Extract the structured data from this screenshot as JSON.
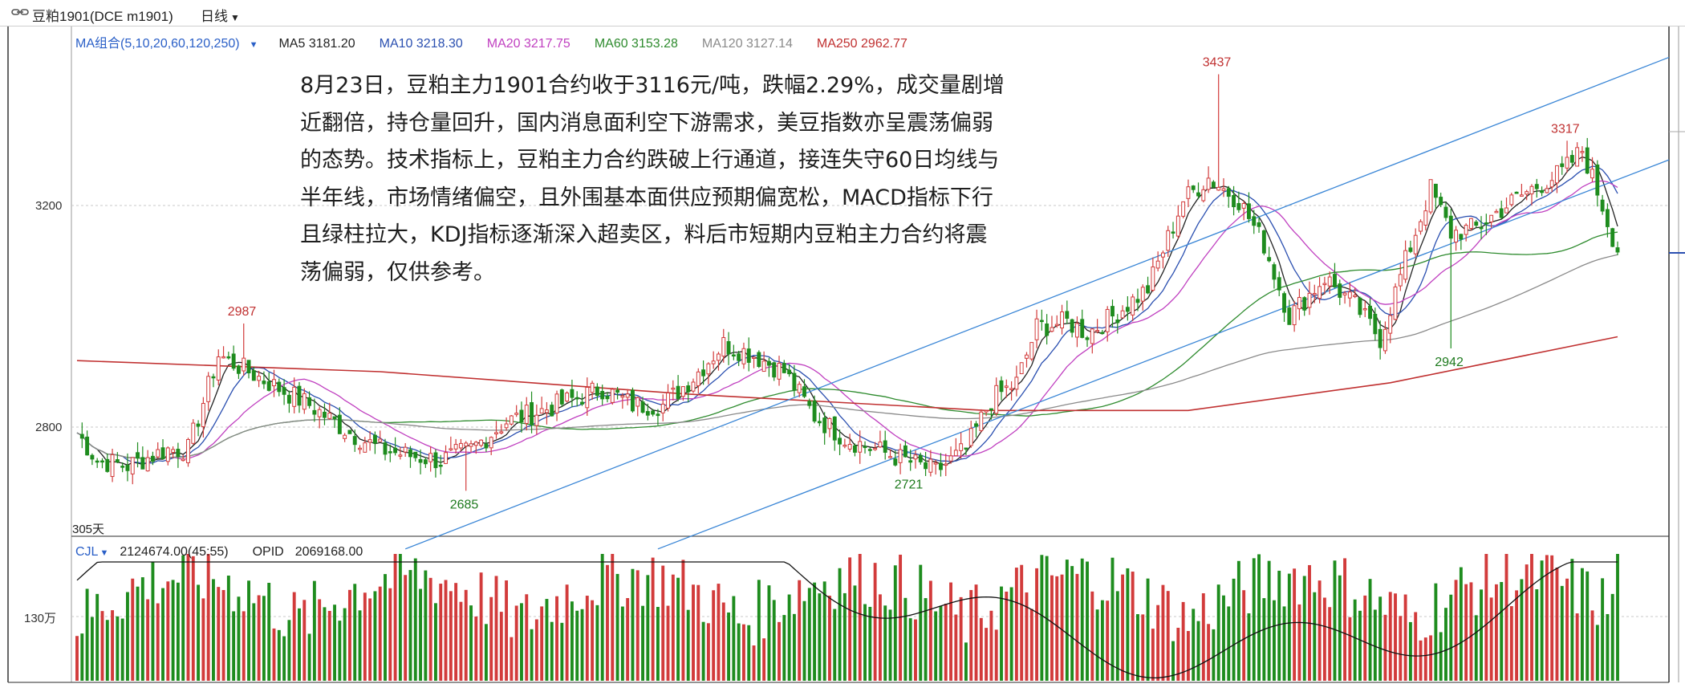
{
  "titlebar": {
    "symbol": "豆粕1901(DCE m1901)",
    "period": "日线"
  },
  "ma_legend": {
    "combo": "MA组合(5,10,20,60,120,250)",
    "items": [
      {
        "text": "MA5 3181.20",
        "color": "#222222"
      },
      {
        "text": "MA10 3218.30",
        "color": "#2a4fb0"
      },
      {
        "text": "MA20 3217.75",
        "color": "#c040c0"
      },
      {
        "text": "MA60 3153.28",
        "color": "#2e8b2e"
      },
      {
        "text": "MA120 3127.14",
        "color": "#8a8a8a"
      },
      {
        "text": "MA250 2962.77",
        "color": "#c03030"
      }
    ]
  },
  "annotation": {
    "lines": [
      "8月23日，豆粕主力1901合约收于3116元/吨，跌幅2.29%，成交量剧增",
      "近翻倍，持仓量回升，国内消息面利空下游需求，美豆指数亦呈震荡偏弱",
      "的态势。技术指标上，豆粕主力合约跌破上行通道，接连失守60日均线与",
      "半年线，市场情绪偏空，且外围基本面供应预期偏宽松，MACD指标下行",
      "且绿柱拉大，KDJ指标逐渐深入超卖区，料后市短期内豆粕主力合约将震",
      "荡偏弱，仅供参考。"
    ]
  },
  "axis": {
    "price_ticks": [
      "3200",
      "2800"
    ],
    "volume_tick": "130万",
    "days_label": "305天"
  },
  "price_marks": {
    "p1": "2987",
    "p2": "2685",
    "p3": "2721",
    "p4": "3437",
    "p5": "2942",
    "p6": "3317"
  },
  "volume_legend": {
    "cjl": "CJL",
    "cjl_value": "2124674.00(45:55)",
    "opid_label": "OPID",
    "opid_value": "2069168.00"
  },
  "colors": {
    "up": "#d23b3b",
    "down": "#1e8c1e",
    "channel": "#3a86d6",
    "ma250": "#c03030",
    "grid": "#c8c8c8"
  },
  "chart_data": {
    "type": "candlestick",
    "anchors": {
      "x": [
        0,
        4,
        10,
        18,
        22,
        28,
        38,
        46,
        54,
        60,
        65,
        72,
        78,
        85,
        92,
        98,
        104,
        110,
        116,
        122,
        128,
        134,
        140,
        146,
        152,
        158,
        164,
        170,
        176,
        181,
        186,
        190,
        196,
        200,
        205,
        212,
        219,
        224,
        230,
        235,
        240,
        247,
        253,
        258,
        263,
        268,
        272,
        277,
        283,
        288,
        294,
        298,
        302,
        305
      ],
      "close": [
        2790,
        2740,
        2730,
        2760,
        2760,
        2930,
        2880,
        2840,
        2790,
        2760,
        2750,
        2740,
        2760,
        2810,
        2830,
        2850,
        2870,
        2840,
        2840,
        2890,
        2950,
        2930,
        2900,
        2820,
        2780,
        2760,
        2740,
        2720,
        2760,
        2850,
        2880,
        2980,
        2990,
        2970,
        3000,
        3050,
        3210,
        3250,
        3210,
        3130,
        3000,
        3070,
        3020,
        2960,
        3100,
        3230,
        3150,
        3160,
        3200,
        3230,
        3260,
        3300,
        3200,
        3116
      ]
    },
    "extremes": [
      {
        "label": "2987",
        "value": 2987
      },
      {
        "label": "2685",
        "value": 2685
      },
      {
        "label": "2721",
        "value": 2721
      },
      {
        "label": "3437",
        "value": 3437
      },
      {
        "label": "2942",
        "value": 2942
      },
      {
        "label": "3317",
        "value": 3317
      }
    ],
    "volume_unit_tick": 1300000
  }
}
